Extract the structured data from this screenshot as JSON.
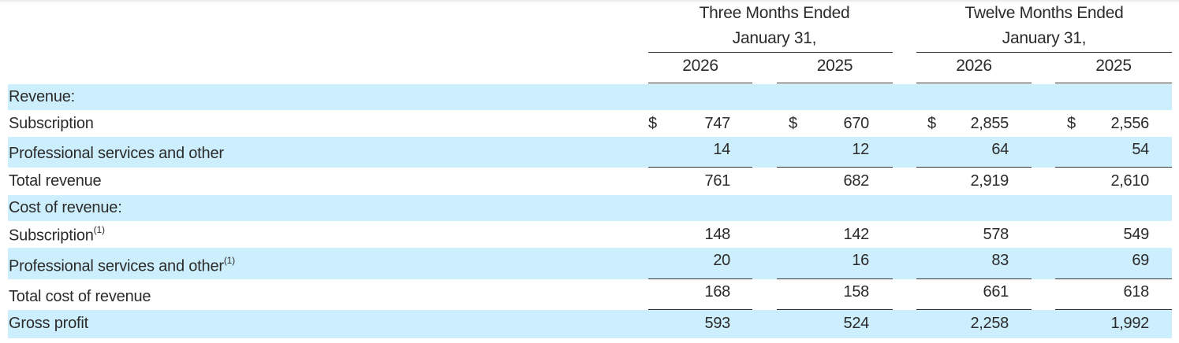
{
  "header": {
    "group1": {
      "line1": "Three Months Ended",
      "line2": "January 31,"
    },
    "group2": {
      "line1": "Twelve Months Ended",
      "line2": "January 31,"
    },
    "years": [
      "2026",
      "2025",
      "2026",
      "2025"
    ]
  },
  "currency_symbol": "$",
  "rows": [
    {
      "label": "Revenue:",
      "values": [
        "",
        "",
        "",
        ""
      ]
    },
    {
      "label": "Subscription",
      "values": [
        "747",
        "670",
        "2,855",
        "2,556"
      ]
    },
    {
      "label": "Professional services and other",
      "values": [
        "14",
        "12",
        "64",
        "54"
      ]
    },
    {
      "label": "Total revenue",
      "values": [
        "761",
        "682",
        "2,919",
        "2,610"
      ]
    },
    {
      "label": "Cost of revenue:",
      "values": [
        "",
        "",
        "",
        ""
      ]
    },
    {
      "label": "Subscription",
      "footnote": "(1)",
      "values": [
        "148",
        "142",
        "578",
        "549"
      ]
    },
    {
      "label": "Professional services and other",
      "footnote": "(1)",
      "values": [
        "20",
        "16",
        "83",
        "69"
      ]
    },
    {
      "label": "Total cost of revenue",
      "values": [
        "168",
        "158",
        "661",
        "618"
      ]
    },
    {
      "label": "Gross profit",
      "values": [
        "593",
        "524",
        "2,258",
        "1,992"
      ]
    }
  ]
}
